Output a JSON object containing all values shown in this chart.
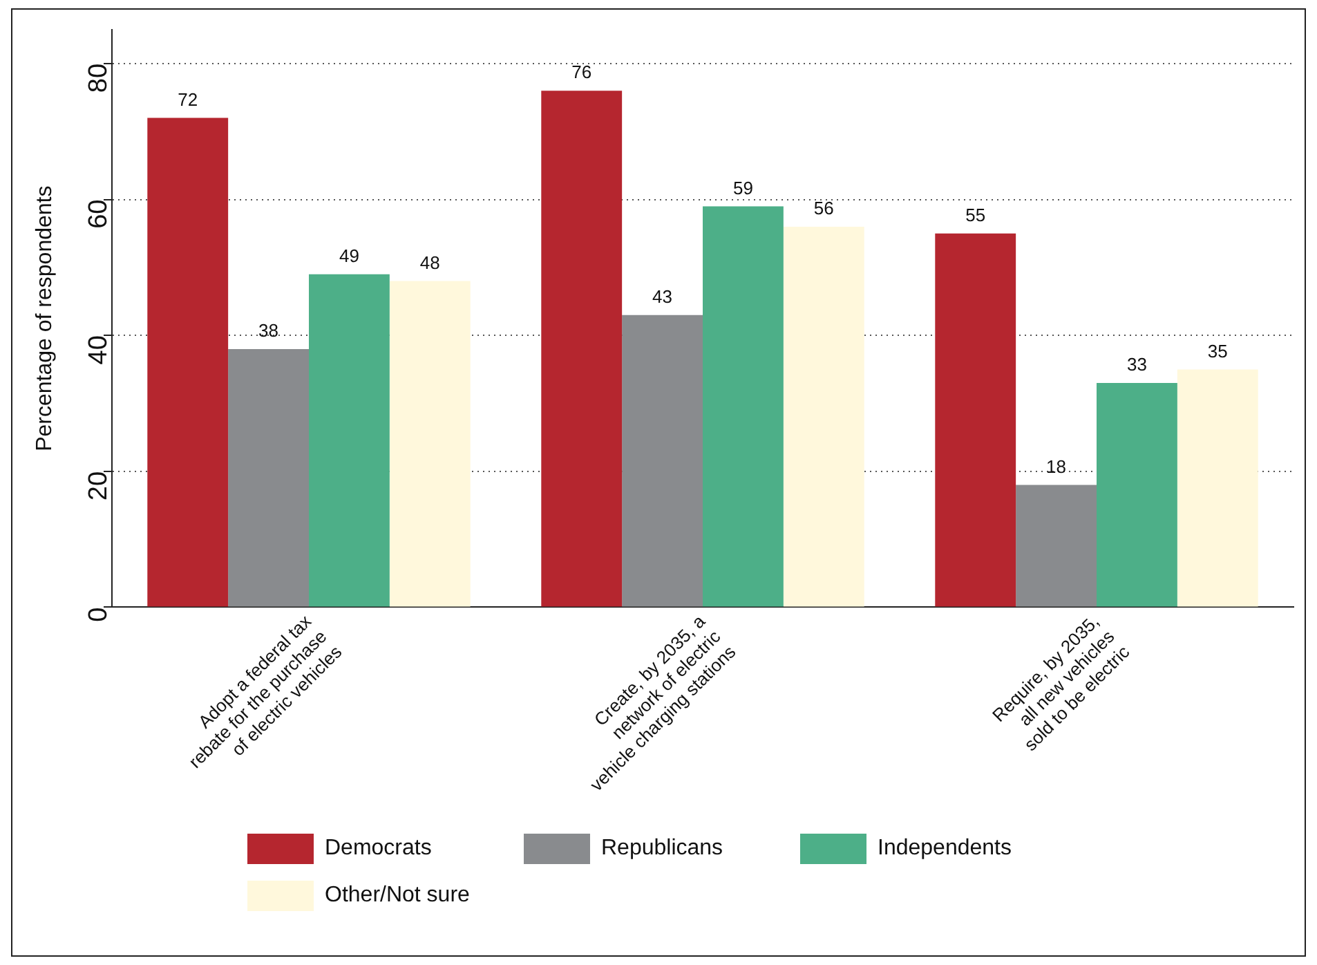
{
  "chart_data": {
    "type": "bar",
    "ylabel": "Percentage of respondents",
    "categories": [
      "Adopt a federal tax\nrebate for the purchase\nof electric vehicles",
      "Create, by 2035, a\nnetwork of electric\nvehicle charging stations",
      "Require, by 2035,\nall new vehicles\nsold to be electric"
    ],
    "series": [
      {
        "name": "Democrats",
        "color": "#b5262f",
        "values": [
          72,
          76,
          55
        ]
      },
      {
        "name": "Republicans",
        "color": "#898b8e",
        "values": [
          38,
          43,
          18
        ]
      },
      {
        "name": "Independents",
        "color": "#4daf88",
        "values": [
          49,
          59,
          33
        ]
      },
      {
        "name": "Other/Not sure",
        "color": "#fff8dc",
        "values": [
          48,
          56,
          35
        ]
      }
    ],
    "ylim": [
      0,
      85
    ],
    "yticks": [
      0,
      20,
      40,
      60,
      80
    ],
    "grid": "y",
    "legend": "bottom",
    "data_labels": true
  }
}
